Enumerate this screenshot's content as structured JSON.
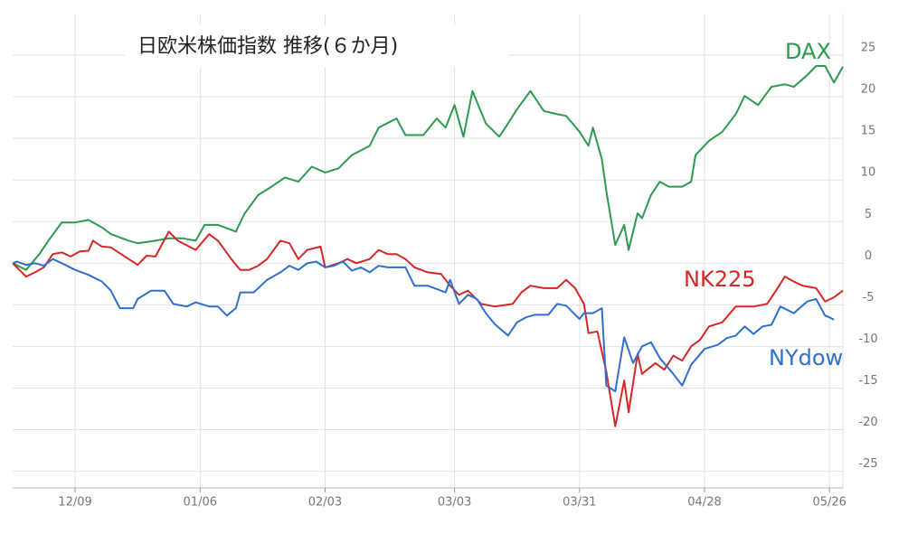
{
  "chart_data": {
    "type": "line",
    "title": "日欧米株価指数 推移(６か月)",
    "xlim": [
      0,
      186
    ],
    "ylim": [
      -27,
      30
    ],
    "xticks": [
      {
        "value": 14,
        "label": "12/09"
      },
      {
        "value": 42,
        "label": "01/06"
      },
      {
        "value": 70,
        "label": "02/03"
      },
      {
        "value": 99,
        "label": "03/03"
      },
      {
        "value": 127,
        "label": "03/31"
      },
      {
        "value": 155,
        "label": "04/28"
      },
      {
        "value": 183,
        "label": "05/26"
      }
    ],
    "yticks": [
      25,
      20,
      15,
      10,
      5,
      0,
      -5,
      -10,
      -15,
      -20,
      -25
    ],
    "grid": true,
    "series": [
      {
        "name": "DAX",
        "color": "#2e9a4f",
        "x": [
          0,
          3,
          6,
          8,
          11,
          14,
          17,
          20,
          22,
          26,
          28,
          32,
          35,
          38,
          41,
          43,
          46,
          50,
          52,
          55,
          58,
          61,
          64,
          67,
          70,
          73,
          76,
          80,
          82,
          86,
          88,
          92,
          95,
          97,
          99,
          101,
          103,
          106,
          109,
          111,
          113,
          116,
          119,
          122,
          124,
          127,
          129,
          130,
          132,
          133,
          135,
          137,
          138,
          140,
          141,
          143,
          145,
          147,
          150,
          152,
          153,
          156,
          159,
          162,
          164,
          167,
          170,
          173,
          175,
          178,
          180,
          182,
          184,
          186
        ],
        "values": [
          0,
          -0.8,
          1.1,
          2.7,
          4.9,
          4.9,
          5.2,
          4.3,
          3.5,
          2.7,
          2.4,
          2.7,
          3,
          3,
          2.7,
          4.6,
          4.6,
          3.8,
          6,
          8.2,
          9.2,
          10.3,
          9.8,
          11.6,
          10.9,
          11.4,
          13,
          14.1,
          16.3,
          17.4,
          15.4,
          15.4,
          17.4,
          16.3,
          19,
          15.2,
          20.7,
          16.8,
          15.2,
          16.8,
          18.5,
          20.7,
          18.3,
          17.9,
          17.7,
          15.8,
          14.1,
          16.3,
          12.5,
          8.7,
          2.2,
          4.6,
          1.6,
          6,
          5.4,
          8.2,
          9.8,
          9.2,
          9.2,
          9.8,
          13,
          14.7,
          15.8,
          17.9,
          20.1,
          19,
          21.2,
          21.5,
          21.2,
          22.6,
          23.7,
          23.7,
          21.7,
          23.6
        ]
      },
      {
        "name": "NK225",
        "color": "#d62728",
        "x": [
          0,
          3,
          5,
          7,
          9,
          11,
          13,
          15,
          17,
          18,
          20,
          22,
          26,
          28,
          30,
          32,
          35,
          37,
          41,
          44,
          46,
          49,
          51,
          53,
          55,
          57,
          60,
          62,
          64,
          66,
          69,
          70,
          73,
          75,
          77,
          80,
          82,
          84,
          86,
          88,
          90,
          93,
          96,
          98,
          100,
          102,
          105,
          108,
          112,
          114,
          116,
          119,
          122,
          124,
          126,
          128,
          129,
          131,
          133,
          135,
          137,
          138,
          140,
          141,
          144,
          146,
          148,
          150,
          152,
          154,
          156,
          159,
          162,
          166,
          169,
          171,
          173,
          175,
          177,
          180,
          182,
          184,
          186
        ],
        "values": [
          0,
          -1.6,
          -1.1,
          -0.5,
          1.1,
          1.3,
          0.8,
          1.4,
          1.5,
          2.7,
          2,
          1.9,
          0.5,
          -0.2,
          0.9,
          0.8,
          3.8,
          2.7,
          1.6,
          3.5,
          2.7,
          0.5,
          -0.8,
          -0.8,
          -0.3,
          0.5,
          2.7,
          2.4,
          0.5,
          1.6,
          2,
          -0.5,
          0,
          0.5,
          0,
          0.5,
          1.6,
          1.1,
          1.1,
          0.5,
          -0.5,
          -1.1,
          -1.3,
          -2.7,
          -3.8,
          -3.3,
          -4.9,
          -5.2,
          -4.9,
          -3.5,
          -2.7,
          -3,
          -3,
          -2,
          -3,
          -4.9,
          -8.4,
          -8.2,
          -13,
          -19.6,
          -14.1,
          -17.9,
          -10.9,
          -13.3,
          -12,
          -12.8,
          -11.1,
          -11.7,
          -10,
          -9.2,
          -7.6,
          -7.1,
          -5.2,
          -5.2,
          -4.9,
          -3.3,
          -1.6,
          -2.2,
          -2.7,
          -3,
          -4.6,
          -4.1,
          -3.3
        ]
      },
      {
        "name": "NYdow",
        "color": "#2f6fce",
        "x": [
          0,
          1,
          3,
          5,
          7,
          9,
          11,
          14,
          17,
          20,
          22,
          24,
          27,
          28,
          31,
          34,
          36,
          39,
          41,
          44,
          46,
          48,
          50,
          51,
          54,
          57,
          60,
          62,
          64,
          66,
          68,
          70,
          72,
          74,
          76,
          78,
          80,
          82,
          84,
          88,
          90,
          93,
          97,
          98,
          100,
          102,
          104,
          106,
          108,
          111,
          113,
          115,
          117,
          120,
          122,
          124,
          127,
          128,
          130,
          132,
          133,
          135,
          137,
          139,
          141,
          143,
          145,
          148,
          150,
          152,
          155,
          158,
          160,
          162,
          164,
          166,
          168,
          170,
          172,
          175,
          178,
          180,
          182,
          183,
          184
        ],
        "values": [
          0,
          0.2,
          -0.2,
          0,
          -0.3,
          0.5,
          0,
          -0.8,
          -1.4,
          -2.2,
          -3.3,
          -5.4,
          -5.4,
          -4.3,
          -3.3,
          -3.3,
          -4.9,
          -5.2,
          -4.7,
          -5.2,
          -5.2,
          -6.3,
          -5.4,
          -3.5,
          -3.5,
          -2,
          -1.1,
          -0.3,
          -0.8,
          0,
          0.2,
          -0.5,
          -0.3,
          0.2,
          -0.9,
          -0.5,
          -1.1,
          -0.3,
          -0.5,
          -0.5,
          -2.7,
          -2.7,
          -3.5,
          -2,
          -4.9,
          -3.8,
          -4.3,
          -6,
          -7.3,
          -8.7,
          -7.1,
          -6.5,
          -6.2,
          -6.2,
          -4.9,
          -5.1,
          -6.7,
          -6,
          -6,
          -5.4,
          -14.7,
          -15.4,
          -8.9,
          -12,
          -10,
          -9.5,
          -11.4,
          -13.3,
          -14.7,
          -12.2,
          -10.3,
          -9.8,
          -9,
          -8.7,
          -7.6,
          -8.5,
          -7.6,
          -7.4,
          -5.2,
          -6,
          -4.6,
          -4.3,
          -6.3,
          -6.5,
          -6.8
        ]
      }
    ]
  }
}
